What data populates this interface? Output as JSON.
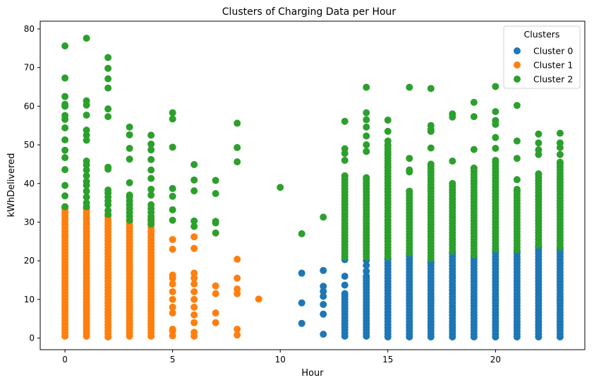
{
  "chart_data": {
    "type": "scatter",
    "title": "Clusters of Charging Data per Hour",
    "xlabel": "Hour",
    "ylabel": "kWhDelivered",
    "xlim": [
      -1.15,
      24.15
    ],
    "ylim": [
      -3.0,
      82.0
    ],
    "x_ticks": [
      0,
      5,
      10,
      15,
      20
    ],
    "y_ticks": [
      0,
      10,
      20,
      30,
      40,
      50,
      60,
      70,
      80
    ],
    "grid": false,
    "legend": {
      "title": "Clusters",
      "placement": "top-right"
    },
    "series": [
      {
        "name": "Cluster 0",
        "color": "#1f77b4",
        "columns": [
          {
            "x": 11,
            "extra": [
              3.8,
              9.1,
              16.8
            ]
          },
          {
            "x": 12,
            "extra": [
              1.0,
              6.2,
              8.7,
              10.8,
              12.1,
              13.4,
              17.5
            ]
          },
          {
            "x": 13,
            "min": 0.5,
            "max": 11.5,
            "extra": [
              13.7,
              16.0,
              20.3
            ]
          },
          {
            "x": 14,
            "min": 0.5,
            "max": 16.0,
            "extra": [
              17.3,
              18.8,
              20.1
            ]
          },
          {
            "x": 15,
            "min": 0.3,
            "max": 20.6
          },
          {
            "x": 16,
            "min": 0.3,
            "max": 21.5
          },
          {
            "x": 17,
            "min": 0.3,
            "max": 19.8
          },
          {
            "x": 18,
            "min": 0.3,
            "max": 22.0
          },
          {
            "x": 19,
            "min": 0.3,
            "max": 21.0
          },
          {
            "x": 20,
            "min": 0.3,
            "max": 22.5
          },
          {
            "x": 21,
            "min": 0.3,
            "max": 22.5
          },
          {
            "x": 22,
            "min": 0.3,
            "max": 23.5
          },
          {
            "x": 23,
            "min": 0.3,
            "max": 23.2
          }
        ]
      },
      {
        "name": "Cluster 1",
        "color": "#ff7f0e",
        "columns": [
          {
            "x": 0,
            "min": 0.5,
            "max": 33.7
          },
          {
            "x": 1,
            "min": 0.5,
            "max": 33.5
          },
          {
            "x": 2,
            "min": 0.3,
            "max": 31.5
          },
          {
            "x": 3,
            "min": 0.5,
            "max": 30.0
          },
          {
            "x": 4,
            "min": 0.5,
            "max": 31.0
          },
          {
            "x": 5,
            "extra": [
              0.6,
              1.8,
              2.3,
              6.5,
              8.0,
              10.0,
              12.0,
              14.0,
              15.5,
              16.3,
              23.0,
              25.5
            ]
          },
          {
            "x": 6,
            "extra": [
              0.5,
              1.5,
              4.0,
              6.0,
              8.0,
              10.0,
              12.0,
              14.0,
              15.5,
              16.8,
              23.2,
              26.2
            ]
          },
          {
            "x": 7,
            "extra": [
              4.0,
              6.5,
              11.5,
              13.5
            ]
          },
          {
            "x": 8,
            "extra": [
              0.8,
              2.3,
              11.5,
              12.7,
              15.5,
              20.4
            ]
          },
          {
            "x": 9,
            "extra": [
              10.1
            ]
          }
        ]
      },
      {
        "name": "Cluster 2",
        "color": "#2ca02c",
        "columns": [
          {
            "x": 0,
            "extra": [
              34.0,
              36.8,
              39.5,
              43.6,
              46.7,
              48.6,
              51.3,
              54.4,
              56.6,
              57.6,
              60.0,
              60.5,
              62.5,
              67.3,
              75.6
            ]
          },
          {
            "x": 1,
            "extra": [
              34.0,
              35.0,
              36.5,
              38.0,
              39.5,
              40.5,
              42.0,
              43.5,
              44.8,
              45.8,
              51.2,
              52.5,
              53.8,
              57.7,
              60.3,
              61.4,
              77.6
            ]
          },
          {
            "x": 2,
            "extra": [
              32.0,
              33.0,
              34.5,
              35.5,
              36.5,
              37.5,
              38.3,
              43.7,
              44.2,
              57.3,
              59.3,
              64.7,
              67.1,
              69.8,
              72.6
            ]
          },
          {
            "x": 3,
            "extra": [
              30.5,
              31.5,
              32.5,
              33.5,
              34.5,
              35.5,
              36.5,
              37.0,
              40.2,
              46.3,
              49.1,
              52.6,
              54.6
            ]
          },
          {
            "x": 4,
            "extra": [
              29.5,
              30.5,
              31.5,
              32.5,
              33.5,
              34.5,
              37.0,
              38.5,
              41.3,
              43.5,
              46.2,
              48.7,
              50.2,
              52.5
            ]
          },
          {
            "x": 5,
            "extra": [
              30.5,
              33.2,
              36.7,
              38.7,
              49.4,
              56.7,
              58.3
            ]
          },
          {
            "x": 6,
            "extra": [
              28.9,
              30.3,
              38.1,
              40.9,
              44.9
            ]
          },
          {
            "x": 7,
            "extra": [
              27.2,
              29.8,
              30.2,
              37.4,
              40.8
            ]
          },
          {
            "x": 8,
            "extra": [
              45.6,
              49.3,
              55.6
            ]
          },
          {
            "x": 10,
            "extra": [
              39.0
            ]
          },
          {
            "x": 11,
            "extra": [
              27.0
            ]
          },
          {
            "x": 12,
            "extra": [
              31.3
            ]
          },
          {
            "x": 13,
            "min": 21.0,
            "max": 42.0,
            "extra": [
              46.0,
              47.8,
              49.0,
              56.1
            ]
          },
          {
            "x": 14,
            "min": 21.0,
            "max": 41.5,
            "extra": [
              48.3,
              50.0,
              52.3,
              54.6,
              56.5,
              58.3,
              64.9
            ]
          },
          {
            "x": 15,
            "min": 21.0,
            "max": 50.0,
            "extra": [
              51.0,
              53.5,
              56.4
            ]
          },
          {
            "x": 16,
            "min": 22.0,
            "max": 38.0,
            "extra": [
              43.0,
              43.5,
              46.5,
              64.9
            ]
          },
          {
            "x": 17,
            "min": 20.5,
            "max": 45.0,
            "extra": [
              49.2,
              53.5,
              54.0,
              55.0,
              64.6
            ]
          },
          {
            "x": 18,
            "min": 22.5,
            "max": 40.0,
            "extra": [
              45.8,
              57.2,
              58.0
            ]
          },
          {
            "x": 19,
            "min": 21.5,
            "max": 44.0,
            "extra": [
              48.8,
              57.3,
              61.0
            ]
          },
          {
            "x": 20,
            "min": 23.0,
            "max": 46.0,
            "extra": [
              49.1,
              51.9,
              55.3,
              56.3,
              58.6,
              65.1
            ]
          },
          {
            "x": 21,
            "min": 22.8,
            "max": 38.5,
            "extra": [
              41.0,
              46.5,
              51.0,
              60.2
            ]
          },
          {
            "x": 22,
            "min": 24.0,
            "max": 42.5,
            "extra": [
              47.5,
              48.7,
              50.5,
              52.8
            ]
          },
          {
            "x": 23,
            "min": 23.5,
            "max": 45.5,
            "extra": [
              47.5,
              49.3,
              50.5,
              53.0
            ]
          }
        ]
      }
    ]
  }
}
